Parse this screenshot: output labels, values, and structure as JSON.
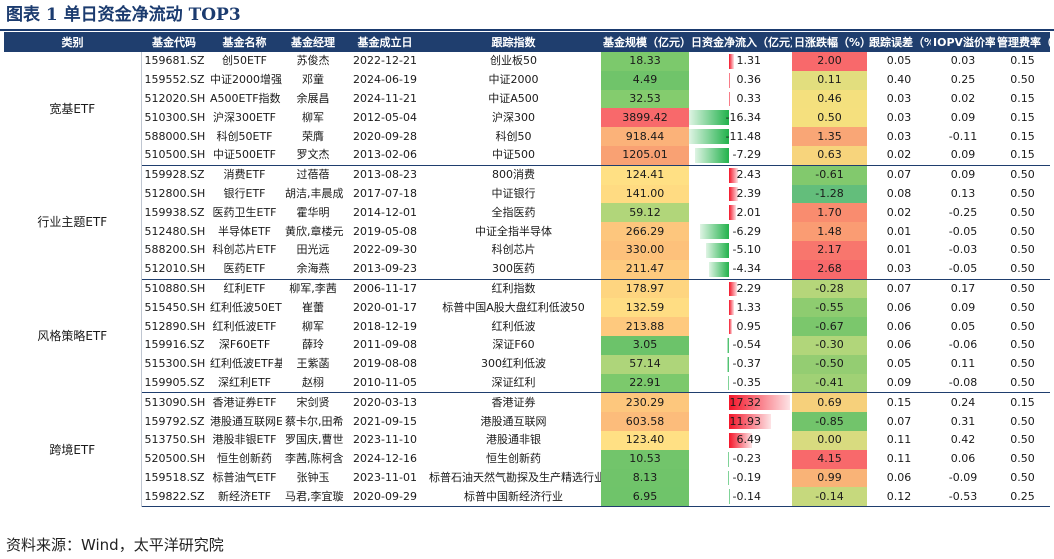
{
  "title": "图表 1 单日资金净流动 TOP3",
  "source": "资料来源：Wind，太平洋研究院",
  "headers": [
    "类别",
    "基金代码",
    "基金名称",
    "基金经理",
    "基金成立日",
    "跟踪指数",
    "基金规模（亿元）",
    "日资金净流入（亿元）",
    "日涨跌幅（%）",
    "跟踪误差（%）",
    "IOPV溢价率（%）",
    "管理费率（%）"
  ],
  "colors": {
    "header_bg": "#1f3e6e",
    "inflow": "#f4162a",
    "outflow": "#22b24c"
  },
  "groups": [
    {
      "category": "宽基ETF",
      "rows": [
        {
          "code": "159681.SZ",
          "name": "创50ETF",
          "manager": "苏俊杰",
          "date": "2022-12-21",
          "index": "创业板50",
          "scale": "18.33",
          "flow": "1.31",
          "chg": "2.00",
          "te": "0.05",
          "iopv": "0.03",
          "fee": "0.15",
          "scale_color": "#7cc96c",
          "chg_color": "#f8696b"
        },
        {
          "code": "159552.SZ",
          "name": "中证2000增强ETF",
          "manager": "邓童",
          "date": "2024-06-19",
          "index": "中证2000",
          "scale": "4.49",
          "flow": "0.36",
          "chg": "0.11",
          "te": "0.40",
          "iopv": "0.25",
          "fee": "0.50",
          "scale_color": "#70c46a",
          "chg_color": "#e2de7e"
        },
        {
          "code": "512020.SH",
          "name": "A500ETF指数",
          "manager": "余展昌",
          "date": "2024-11-21",
          "index": "中证A500",
          "scale": "32.53",
          "flow": "0.33",
          "chg": "0.46",
          "te": "0.03",
          "iopv": "0.02",
          "fee": "0.15",
          "scale_color": "#84cc6e",
          "chg_color": "#f4e07e"
        },
        {
          "code": "510300.SH",
          "name": "沪深300ETF",
          "manager": "柳军",
          "date": "2012-05-04",
          "index": "沪深300",
          "scale": "3899.42",
          "flow": "-16.34",
          "chg": "0.50",
          "te": "0.03",
          "iopv": "0.09",
          "fee": "0.15",
          "scale_color": "#f8696b",
          "chg_color": "#f5e07e"
        },
        {
          "code": "588000.SH",
          "name": "科创50ETF",
          "manager": "荣膺",
          "date": "2020-09-28",
          "index": "科创50",
          "scale": "918.44",
          "flow": "-11.48",
          "chg": "1.35",
          "te": "0.03",
          "iopv": "-0.11",
          "fee": "0.15",
          "scale_color": "#fbb279",
          "chg_color": "#f9a676"
        },
        {
          "code": "510500.SH",
          "name": "中证500ETF",
          "manager": "罗文杰",
          "date": "2013-02-06",
          "index": "中证500",
          "scale": "1205.01",
          "flow": "-7.29",
          "chg": "0.63",
          "te": "0.02",
          "iopv": "0.09",
          "fee": "0.15",
          "scale_color": "#f9a173",
          "chg_color": "#f7d47c"
        }
      ]
    },
    {
      "category": "行业主题ETF",
      "rows": [
        {
          "code": "159928.SZ",
          "name": "消费ETF",
          "manager": "过蓓蓓",
          "date": "2013-08-23",
          "index": "800消费",
          "scale": "124.41",
          "flow": "2.43",
          "chg": "-0.61",
          "te": "0.07",
          "iopv": "0.09",
          "fee": "0.50",
          "scale_color": "#ffe084",
          "chg_color": "#82c96d"
        },
        {
          "code": "512800.SH",
          "name": "银行ETF",
          "manager": "胡洁,丰晨成",
          "date": "2017-07-18",
          "index": "中证银行",
          "scale": "141.00",
          "flow": "2.39",
          "chg": "-1.28",
          "te": "0.08",
          "iopv": "0.13",
          "fee": "0.50",
          "scale_color": "#ffdb82",
          "chg_color": "#63be7b"
        },
        {
          "code": "159938.SZ",
          "name": "医药卫生ETF",
          "manager": "霍华明",
          "date": "2014-12-01",
          "index": "全指医药",
          "scale": "59.12",
          "flow": "2.01",
          "chg": "1.70",
          "te": "0.02",
          "iopv": "-0.25",
          "fee": "0.50",
          "scale_color": "#b1d67a",
          "chg_color": "#f98c6f"
        },
        {
          "code": "512480.SH",
          "name": "半导体ETF",
          "manager": "黄欣,章楼元",
          "date": "2019-05-08",
          "index": "中证全指半导体",
          "scale": "266.29",
          "flow": "-6.29",
          "chg": "1.48",
          "te": "0.01",
          "iopv": "-0.05",
          "fee": "0.50",
          "scale_color": "#fdc67d",
          "chg_color": "#fa9c73"
        },
        {
          "code": "588200.SH",
          "name": "科创芯片ETF",
          "manager": "田光远",
          "date": "2022-09-30",
          "index": "科创芯片",
          "scale": "330.00",
          "flow": "-5.10",
          "chg": "2.17",
          "te": "0.01",
          "iopv": "-0.03",
          "fee": "0.50",
          "scale_color": "#fdc17b",
          "chg_color": "#f8766d"
        },
        {
          "code": "512010.SH",
          "name": "医药ETF",
          "manager": "余海燕",
          "date": "2013-09-23",
          "index": "300医药",
          "scale": "211.47",
          "flow": "-4.34",
          "chg": "2.68",
          "te": "0.03",
          "iopv": "-0.05",
          "fee": "0.50",
          "scale_color": "#feca7e",
          "chg_color": "#f8696b"
        }
      ]
    },
    {
      "category": "风格策略ETF",
      "rows": [
        {
          "code": "510880.SH",
          "name": "红利ETF",
          "manager": "柳军,李茜",
          "date": "2006-11-17",
          "index": "红利指数",
          "scale": "178.97",
          "flow": "2.29",
          "chg": "-0.28",
          "te": "0.07",
          "iopv": "0.17",
          "fee": "0.50",
          "scale_color": "#fed580",
          "chg_color": "#b5d67a"
        },
        {
          "code": "515450.SH",
          "name": "红利低波50ETF",
          "manager": "崔蕾",
          "date": "2020-01-17",
          "index": "标普中国A股大盘红利低波50",
          "scale": "132.59",
          "flow": "1.33",
          "chg": "-0.55",
          "te": "0.06",
          "iopv": "0.09",
          "fee": "0.50",
          "scale_color": "#ffdd83",
          "chg_color": "#8ecc70"
        },
        {
          "code": "512890.SH",
          "name": "红利低波ETF",
          "manager": "柳军",
          "date": "2018-12-19",
          "index": "红利低波",
          "scale": "213.88",
          "flow": "0.95",
          "chg": "-0.67",
          "te": "0.06",
          "iopv": "0.05",
          "fee": "0.50",
          "scale_color": "#fec97e",
          "chg_color": "#7bc76c"
        },
        {
          "code": "159916.SZ",
          "name": "深F60ETF",
          "manager": "薛玲",
          "date": "2011-09-08",
          "index": "深证F60",
          "scale": "3.05",
          "flow": "-0.54",
          "chg": "-0.30",
          "te": "0.06",
          "iopv": "-0.06",
          "fee": "0.50",
          "scale_color": "#6cc36a",
          "chg_color": "#b1d67a"
        },
        {
          "code": "515300.SH",
          "name": "红利低波ETF基金",
          "manager": "王紫菡",
          "date": "2019-08-08",
          "index": "300红利低波",
          "scale": "57.14",
          "flow": "-0.37",
          "chg": "-0.50",
          "te": "0.05",
          "iopv": "0.11",
          "fee": "0.50",
          "scale_color": "#aed57a",
          "chg_color": "#94cd72"
        },
        {
          "code": "159905.SZ",
          "name": "深红利ETF",
          "manager": "赵栩",
          "date": "2010-11-05",
          "index": "深证红利",
          "scale": "22.91",
          "flow": "-0.35",
          "chg": "-0.41",
          "te": "0.09",
          "iopv": "-0.08",
          "fee": "0.50",
          "scale_color": "#7cc96c",
          "chg_color": "#a0d175"
        }
      ]
    },
    {
      "category": "跨境ETF",
      "rows": [
        {
          "code": "513090.SH",
          "name": "香港证券ETF",
          "manager": "宋剑贤",
          "date": "2020-03-13",
          "index": "香港证券",
          "scale": "230.29",
          "flow": "17.32",
          "chg": "0.69",
          "te": "0.15",
          "iopv": "0.24",
          "fee": "0.15",
          "scale_color": "#fdc77d",
          "chg_color": "#f6d07b"
        },
        {
          "code": "159792.SZ",
          "name": "港股通互联网ETF",
          "manager": "蔡卡尔,田希蒙",
          "date": "2021-09-15",
          "index": "港股通互联网",
          "scale": "603.58",
          "flow": "11.93",
          "chg": "-0.85",
          "te": "0.07",
          "iopv": "0.31",
          "fee": "0.50",
          "scale_color": "#fcbc7b",
          "chg_color": "#72c46b"
        },
        {
          "code": "513750.SH",
          "name": "港股非银ETF",
          "manager": "罗国庆,曹世宇",
          "date": "2023-11-10",
          "index": "港股通非银",
          "scale": "123.40",
          "flow": "6.49",
          "chg": "0.00",
          "te": "0.11",
          "iopv": "0.42",
          "fee": "0.50",
          "scale_color": "#ffe084",
          "chg_color": "#d8db7f"
        },
        {
          "code": "520500.SH",
          "name": "恒生创新药",
          "manager": "李茜,陈柯含",
          "date": "2024-12-16",
          "index": "恒生创新药",
          "scale": "10.53",
          "flow": "-0.23",
          "chg": "4.15",
          "te": "0.11",
          "iopv": "0.06",
          "fee": "0.50",
          "scale_color": "#72c56b",
          "chg_color": "#f8696b"
        },
        {
          "code": "159518.SZ",
          "name": "标普油气ETF",
          "manager": "张钟玉",
          "date": "2023-11-01",
          "index": "标普石油天然气勘探及生产精选行业",
          "scale": "8.13",
          "flow": "-0.19",
          "chg": "0.99",
          "te": "0.06",
          "iopv": "-0.09",
          "fee": "0.50",
          "scale_color": "#70c46a",
          "chg_color": "#f9b377"
        },
        {
          "code": "159822.SZ",
          "name": "新经济ETF",
          "manager": "马君,李宜璇",
          "date": "2020-09-29",
          "index": "标普中国新经济行业",
          "scale": "6.95",
          "flow": "-0.14",
          "chg": "-0.14",
          "te": "0.12",
          "iopv": "-0.53",
          "fee": "0.25",
          "scale_color": "#6fc46a",
          "chg_color": "#c6d97d"
        }
      ]
    }
  ]
}
